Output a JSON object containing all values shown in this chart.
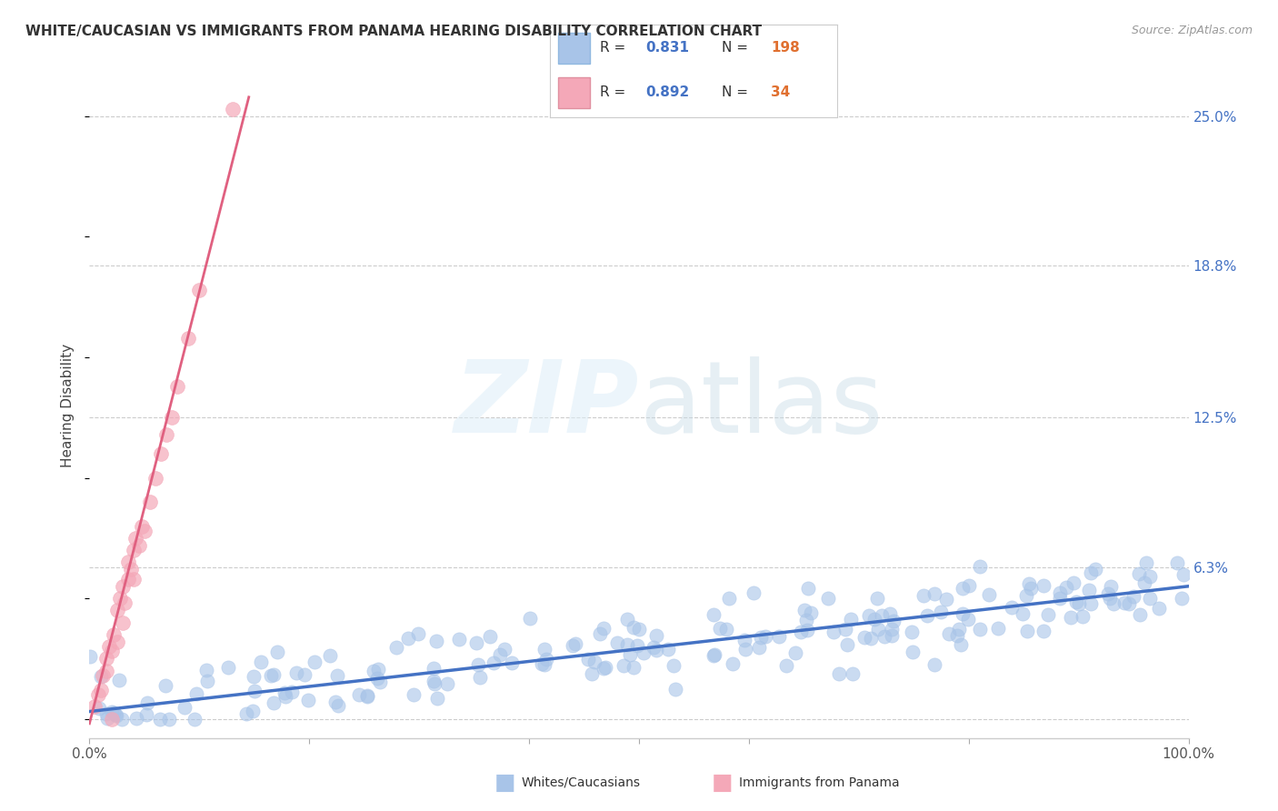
{
  "title": "WHITE/CAUCASIAN VS IMMIGRANTS FROM PANAMA HEARING DISABILITY CORRELATION CHART",
  "source": "Source: ZipAtlas.com",
  "ylabel": "Hearing Disability",
  "yticks": [
    0.0,
    0.063,
    0.125,
    0.188,
    0.25
  ],
  "ytick_labels": [
    "",
    "6.3%",
    "12.5%",
    "18.8%",
    "25.0%"
  ],
  "xlim": [
    0.0,
    1.0
  ],
  "ylim": [
    -0.008,
    0.268
  ],
  "blue_R": 0.831,
  "blue_N": 198,
  "pink_R": 0.892,
  "pink_N": 34,
  "blue_scatter_color": "#a8c4e8",
  "pink_scatter_color": "#f4a8b8",
  "blue_line_color": "#4472c4",
  "pink_line_color": "#e06080",
  "legend_label_blue": "Whites/Caucasians",
  "legend_label_pink": "Immigrants from Panama",
  "title_fontsize": 11,
  "source_fontsize": 9,
  "blue_marker_size": 120,
  "pink_marker_size": 130
}
